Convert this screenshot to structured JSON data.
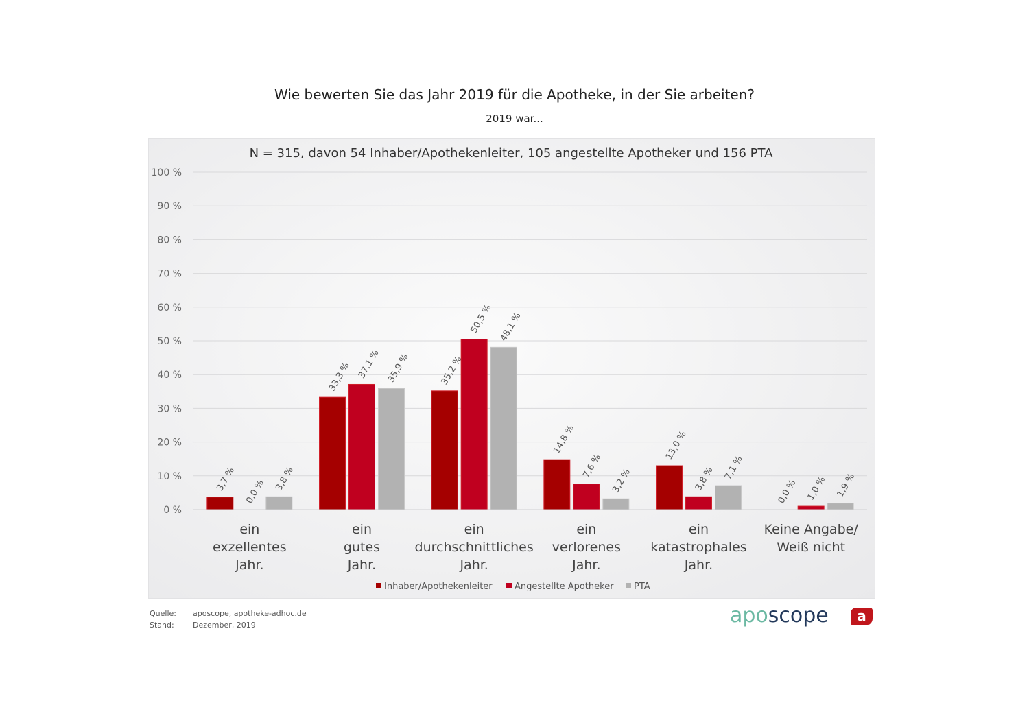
{
  "chart_data": {
    "type": "bar",
    "title": "Wie bewerten Sie das Jahr 2019 für die Apotheke, in der Sie arbeiten?",
    "subtitle": "2019 war...",
    "annotation": "N = 315, davon 54 Inhaber/Apothekenleiter,  105 angestellte Apotheker und 156 PTA",
    "categories": [
      [
        "ein",
        "exzellentes",
        "Jahr."
      ],
      [
        "ein",
        "gutes",
        "Jahr."
      ],
      [
        "ein",
        "durchschnittliches",
        "Jahr."
      ],
      [
        "ein",
        "verlorenes",
        "Jahr."
      ],
      [
        "ein",
        "katastrophales",
        "Jahr."
      ],
      [
        "Keine Angabe/",
        "Weiß nicht"
      ]
    ],
    "series": [
      {
        "name": "Inhaber/Apothekenleiter",
        "color": "#a50000",
        "values": [
          3.7,
          33.3,
          35.2,
          14.8,
          13.0,
          0.0
        ],
        "labels": [
          "3,7 %",
          "33,3 %",
          "35,2 %",
          "14,8 %",
          "13,0 %",
          "0,0 %"
        ]
      },
      {
        "name": "Angestellte Apotheker",
        "color": "#c0001f",
        "values": [
          0.0,
          37.1,
          50.5,
          7.6,
          3.8,
          1.0
        ],
        "labels": [
          "0,0 %",
          "37,1 %",
          "50,5 %",
          "7,6 %",
          "3,8 %",
          "1,0 %"
        ]
      },
      {
        "name": "PTA",
        "color": "#b2b2b2",
        "values": [
          3.8,
          35.9,
          48.1,
          3.2,
          7.1,
          1.9
        ],
        "labels": [
          "3,8 %",
          "35,9 %",
          "48,1 %",
          "3,2 %",
          "7,1 %",
          "1,9 %"
        ]
      }
    ],
    "ylim": [
      0,
      100
    ],
    "yticks": [
      0,
      10,
      20,
      30,
      40,
      50,
      60,
      70,
      80,
      90,
      100
    ],
    "ytick_labels": [
      "0 %",
      "10 %",
      "20 %",
      "30 %",
      "40 %",
      "50 %",
      "60 %",
      "70 %",
      "80 %",
      "90 %",
      "100 %"
    ],
    "grid": true,
    "legend": "bottom"
  },
  "footer": {
    "source_label": "Quelle:",
    "source": "aposcope, apotheke-adhoc.de",
    "date_label": "Stand:",
    "date": "Dezember,  2019"
  },
  "logo": {
    "part1": "apo",
    "part2": "scope",
    "badge": "a"
  }
}
